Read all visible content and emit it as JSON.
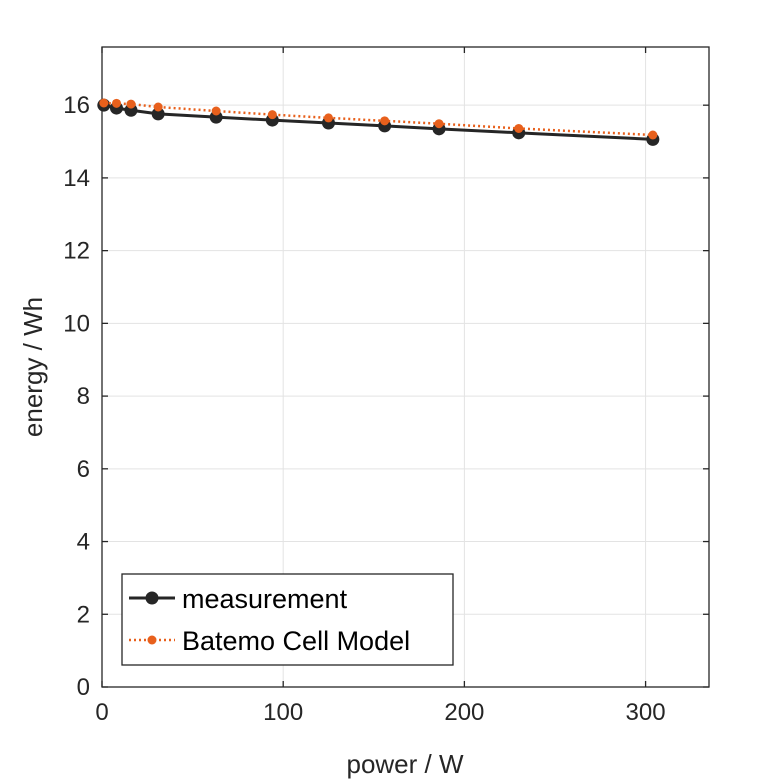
{
  "chart_data": {
    "type": "line",
    "title": "",
    "xlabel": "power / W",
    "ylabel": "energy / Wh",
    "xlim": [
      0,
      335
    ],
    "ylim": [
      0,
      17.6
    ],
    "xticks": [
      0,
      100,
      200,
      300
    ],
    "yticks": [
      0,
      2,
      4,
      6,
      8,
      10,
      12,
      14,
      16
    ],
    "xtick_labels": [
      "0",
      "100",
      "200",
      "300"
    ],
    "ytick_labels": [
      "0",
      "2",
      "4",
      "6",
      "8",
      "10",
      "12",
      "14",
      "16"
    ],
    "grid": true,
    "legend": {
      "placement": "bottom-left",
      "boxed": true
    },
    "series": [
      {
        "name": "measurement",
        "color": "#262626",
        "line_style": "solid",
        "marker": "circle",
        "x": [
          1,
          8,
          16,
          31,
          63,
          94,
          125,
          156,
          186,
          230,
          304
        ],
        "y": [
          16.0,
          15.92,
          15.86,
          15.76,
          15.67,
          15.59,
          15.51,
          15.43,
          15.35,
          15.24,
          15.06
        ]
      },
      {
        "name": "Batemo Cell Model",
        "color": "#e8601c",
        "line_style": "dotted",
        "marker": "circle",
        "x": [
          1,
          8,
          16,
          31,
          63,
          94,
          125,
          156,
          186,
          230,
          304
        ],
        "y": [
          16.06,
          16.05,
          16.03,
          15.95,
          15.84,
          15.74,
          15.65,
          15.57,
          15.49,
          15.36,
          15.18
        ]
      }
    ]
  }
}
